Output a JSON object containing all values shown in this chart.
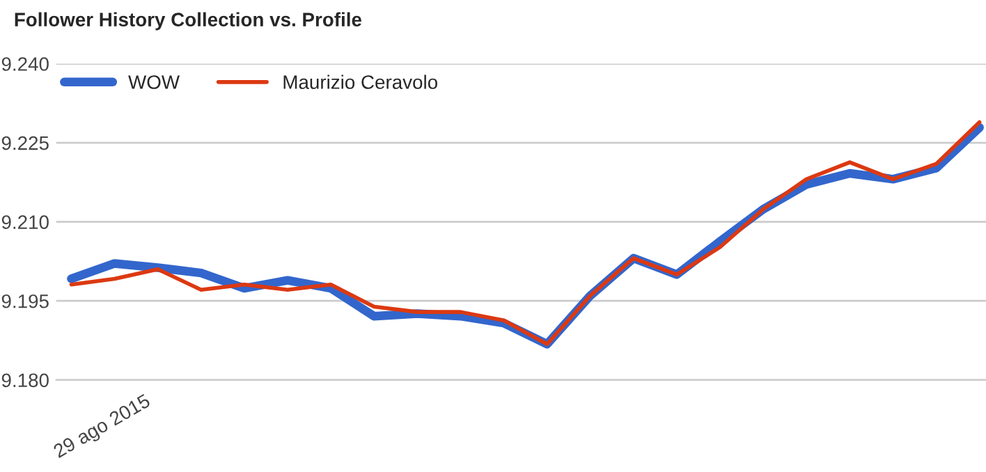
{
  "chart_data": {
    "type": "line",
    "title": "Follower History Collection vs. Profile",
    "categories": [
      null,
      null,
      null,
      null,
      null,
      null,
      null,
      null,
      null,
      null,
      null,
      null,
      null,
      null,
      null,
      null,
      null,
      null,
      null,
      null,
      null,
      null
    ],
    "annotations": [
      "29 ago 2015"
    ],
    "series": [
      {
        "name": "WOW",
        "color": "#3366cc",
        "values": [
          9.1992,
          9.2021,
          9.2013,
          9.2003,
          9.1974,
          9.1989,
          9.1974,
          9.1921,
          9.1926,
          9.1921,
          9.1908,
          9.1868,
          9.196,
          9.2031,
          9.2,
          9.2063,
          9.2124,
          9.2171,
          9.2192,
          9.2181,
          9.2202,
          9.2279
        ]
      },
      {
        "name": "Maurizio Ceravolo",
        "color": "#dc3912",
        "values": [
          9.1981,
          9.1992,
          9.201,
          9.1971,
          9.1981,
          9.1971,
          9.1981,
          9.1939,
          9.1929,
          9.1929,
          9.1913,
          9.1868,
          9.196,
          9.2031,
          9.2,
          9.2052,
          9.2124,
          9.2181,
          9.2213,
          9.2181,
          9.221,
          9.2289
        ]
      }
    ],
    "ylim": [
      9.18,
      9.24
    ],
    "yticks": [
      {
        "value": 9.18,
        "label": "9.180"
      },
      {
        "value": 9.195,
        "label": "9.195"
      },
      {
        "value": 9.21,
        "label": "9.210"
      },
      {
        "value": 9.225,
        "label": "9.225"
      },
      {
        "value": 9.24,
        "label": "9.240"
      }
    ],
    "grid": "y",
    "legend": "top left",
    "marker": "none",
    "line_style": "solid"
  }
}
